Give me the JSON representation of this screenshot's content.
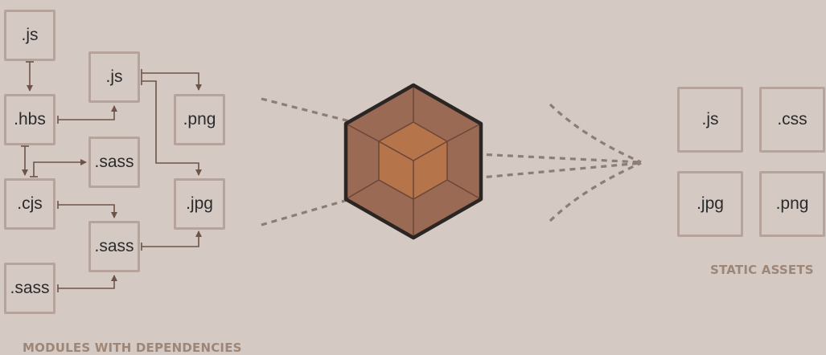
{
  "modules": {
    "label": "MODULES WITH DEPENDENCIES",
    "items": {
      "js_top": ".js",
      "hbs": ".hbs",
      "cjs": ".cjs",
      "sass_left": ".sass",
      "js_mid": ".js",
      "sass_a": ".sass",
      "sass_b": ".sass",
      "png": ".png",
      "jpg": ".jpg"
    }
  },
  "assets": {
    "label": "STATIC ASSETS",
    "items": {
      "js": ".js",
      "css": ".css",
      "jpg": ".jpg",
      "png": ".png"
    }
  },
  "colors": {
    "background": "#d4c9c3",
    "box_border": "#b6a39c",
    "arrow": "#6e5448",
    "dotted_lines": "#8c7d77",
    "label": "#9e8677",
    "cube_outer": "#9a6a55",
    "cube_inner": "#b5744a",
    "cube_outline": "#2b2624"
  }
}
